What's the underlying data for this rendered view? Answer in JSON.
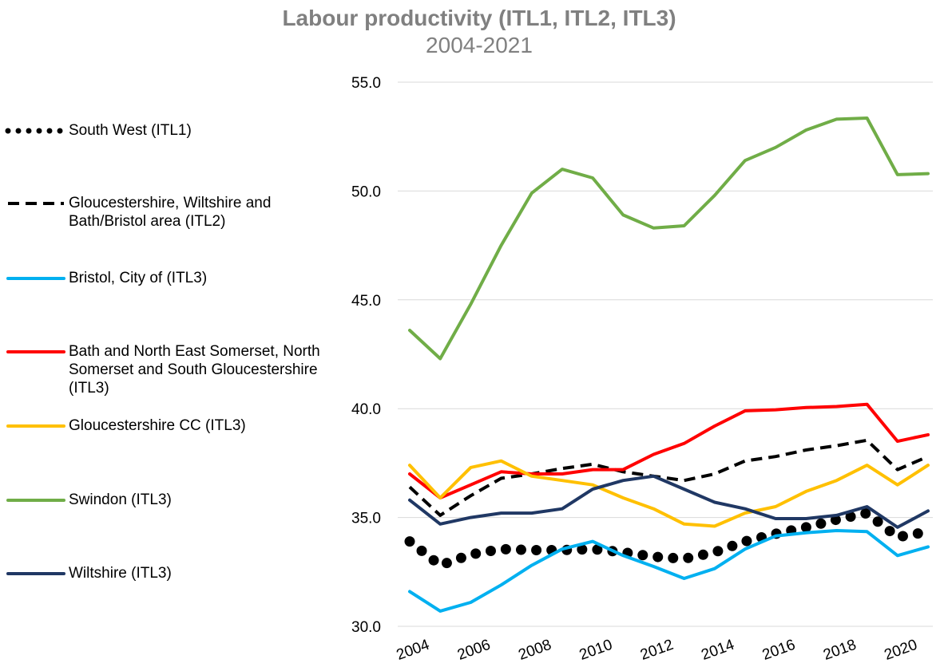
{
  "chart_data": {
    "type": "line",
    "title": "Labour productivity (ITL1, ITL2, ITL3)",
    "subtitle": "2004-2021",
    "x": [
      2004,
      2005,
      2006,
      2007,
      2008,
      2009,
      2010,
      2011,
      2012,
      2013,
      2014,
      2015,
      2016,
      2017,
      2018,
      2019,
      2020,
      2021
    ],
    "xlim": [
      2004,
      2021
    ],
    "xticks": [
      2004,
      2006,
      2008,
      2010,
      2012,
      2014,
      2016,
      2018,
      2020
    ],
    "ylim": [
      30,
      55
    ],
    "yticks": [
      {
        "value": 30,
        "label": "30.0"
      },
      {
        "value": 35,
        "label": "35.0"
      },
      {
        "value": 40,
        "label": "40.0"
      },
      {
        "value": 45,
        "label": "45.0"
      },
      {
        "value": 50,
        "label": "50.0"
      },
      {
        "value": 55,
        "label": "55.0"
      }
    ],
    "grid": true,
    "legend": "left",
    "series": [
      {
        "name": "South West (ITL1)",
        "color": "#000000",
        "dash": "dotted",
        "values": [
          33.9,
          32.8,
          33.3,
          33.55,
          33.5,
          33.5,
          33.55,
          33.4,
          33.2,
          33.1,
          33.4,
          33.9,
          34.25,
          34.55,
          34.9,
          35.2,
          34.1,
          34.35
        ]
      },
      {
        "name": "Gloucestershire, Wiltshire and Bath/Bristol area (ITL2)",
        "color": "#000000",
        "dash": "dashed",
        "values": [
          36.4,
          35.1,
          36.0,
          36.8,
          37.0,
          37.25,
          37.45,
          37.1,
          36.9,
          36.7,
          37.0,
          37.6,
          37.8,
          38.1,
          38.3,
          38.55,
          37.2,
          37.8
        ]
      },
      {
        "name": "Bristol, City of (ITL3)",
        "color": "#00b0f0",
        "dash": "solid",
        "values": [
          31.6,
          30.7,
          31.1,
          31.9,
          32.8,
          33.55,
          33.9,
          33.25,
          32.75,
          32.2,
          32.65,
          33.55,
          34.15,
          34.3,
          34.4,
          34.35,
          33.25,
          33.65
        ]
      },
      {
        "name": "Bath and North East Somerset, North Somerset and South Gloucestershire (ITL3)",
        "color": "#ff0000",
        "dash": "solid",
        "values": [
          37.0,
          35.9,
          36.5,
          37.1,
          37.0,
          37.0,
          37.2,
          37.2,
          37.9,
          38.4,
          39.2,
          39.9,
          39.95,
          40.05,
          40.1,
          40.2,
          38.5,
          38.8
        ]
      },
      {
        "name": "Gloucestershire CC (ITL3)",
        "color": "#ffc000",
        "dash": "solid",
        "values": [
          37.4,
          35.9,
          37.3,
          37.6,
          36.9,
          36.7,
          36.5,
          35.9,
          35.4,
          34.7,
          34.6,
          35.2,
          35.5,
          36.2,
          36.7,
          37.4,
          36.5,
          37.4
        ]
      },
      {
        "name": "Swindon (ITL3)",
        "color": "#70ad47",
        "dash": "solid",
        "values": [
          43.6,
          42.3,
          44.8,
          47.5,
          49.9,
          51.0,
          50.6,
          48.9,
          48.3,
          48.4,
          49.8,
          51.4,
          52.0,
          52.8,
          53.3,
          53.35,
          50.75,
          50.8
        ]
      },
      {
        "name": "Wiltshire (ITL3)",
        "color": "#203864",
        "dash": "solid",
        "values": [
          35.8,
          34.7,
          35.0,
          35.2,
          35.2,
          35.4,
          36.3,
          36.7,
          36.9,
          36.3,
          35.7,
          35.4,
          34.95,
          34.95,
          35.1,
          35.5,
          34.55,
          35.3
        ]
      }
    ]
  }
}
